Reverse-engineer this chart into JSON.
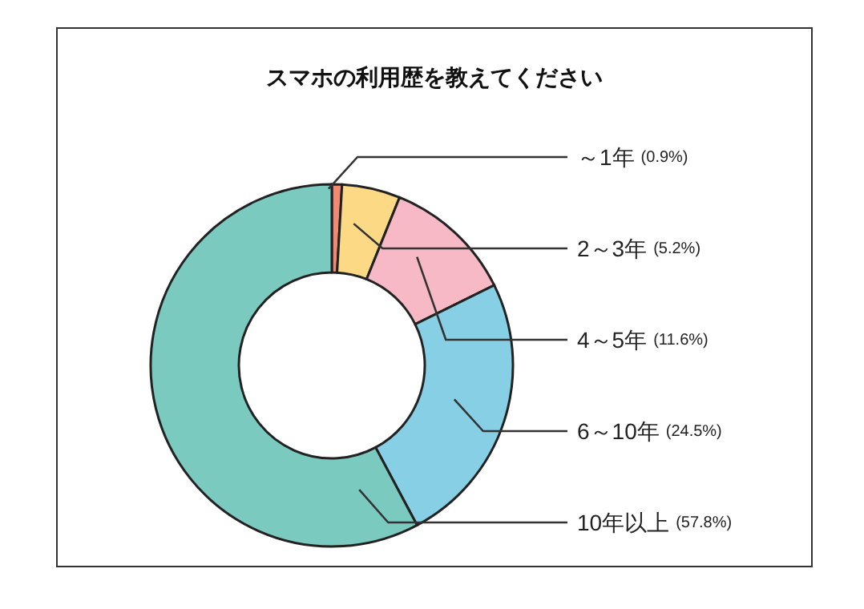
{
  "chart_data": {
    "type": "donut",
    "title": "スマホの利用歴を教えてください",
    "categories": [
      "～1年",
      "2～3年",
      "4～5年",
      "6～10年",
      "10年以上"
    ],
    "values": [
      0.9,
      5.2,
      11.6,
      24.5,
      57.8
    ],
    "value_labels": [
      "(0.9%)",
      "(5.2%)",
      "(11.6%)",
      "(24.5%)",
      "(57.8%)"
    ],
    "colors": [
      "#f08a72",
      "#fbd985",
      "#f7b9c6",
      "#86cfe5",
      "#7bcac0"
    ]
  }
}
